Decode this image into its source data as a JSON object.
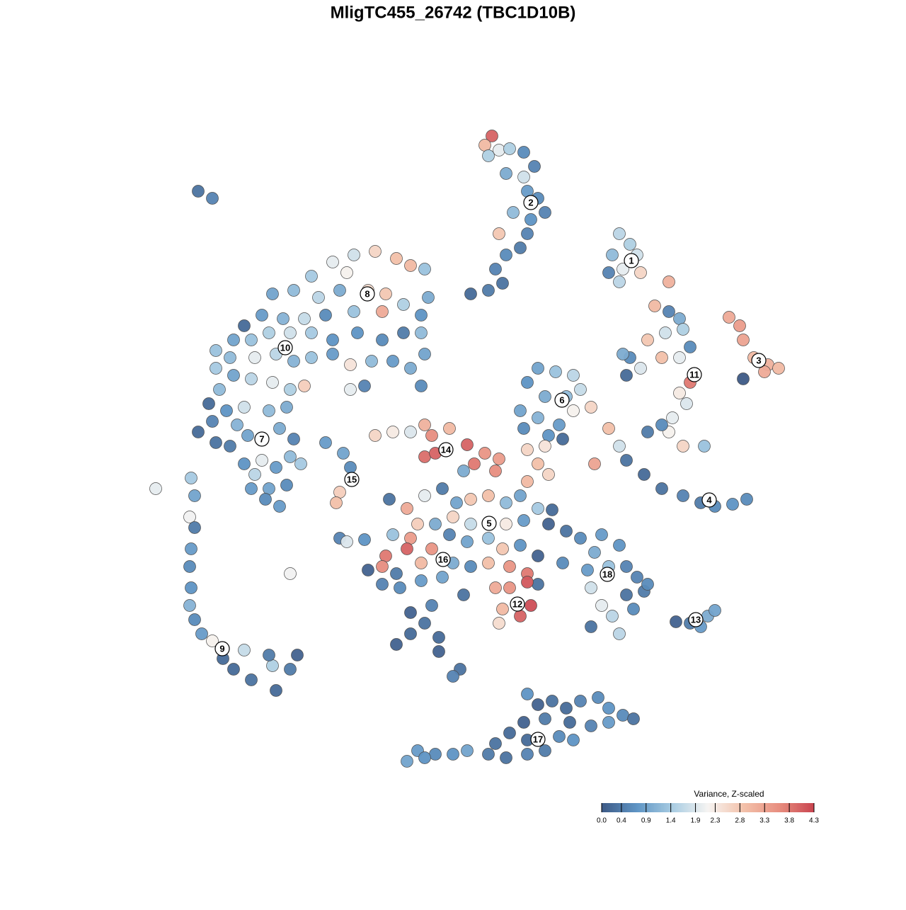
{
  "chart_data": {
    "type": "scatter",
    "title": "MligTC455_26742 (TBC1D10B)",
    "xlim": [
      0,
      128
    ],
    "ylim": [
      128,
      0
    ],
    "x": [
      69.5,
      68.5,
      70.5,
      72,
      74,
      75.5,
      74,
      74.5,
      76,
      77,
      75,
      72.5,
      74.5,
      73.5,
      71.5,
      70,
      71,
      69,
      66.5,
      70.5,
      71.5,
      69,
      87.5,
      89,
      86.5,
      88,
      90.5,
      87.5,
      86,
      94.5,
      90,
      92.5,
      94.5,
      96,
      94,
      96.5,
      91.5,
      97.5,
      93.5,
      96,
      89,
      88.5,
      90.5,
      97.5,
      96,
      97,
      95,
      94.5,
      91.5,
      93.5,
      96.5,
      99.5,
      88,
      103,
      104.5,
      105,
      106.5,
      108.5,
      110,
      108,
      105,
      76,
      78.5,
      81,
      74.5,
      77,
      80,
      82,
      73.5,
      76,
      79,
      74,
      81,
      83.5,
      77.5,
      79.5,
      86,
      87.5,
      88.5,
      91,
      93.5,
      96.5,
      99,
      101,
      103.5,
      105.5,
      84,
      47,
      50,
      53,
      56,
      58,
      60,
      49,
      44,
      41.5,
      38.5,
      45,
      48,
      52,
      54.5,
      57,
      60.5,
      59.5,
      54,
      50,
      46,
      43,
      40,
      37,
      34.5,
      33,
      35.5,
      38,
      41,
      44,
      47,
      50.5,
      54,
      57,
      59.5,
      60,
      58,
      55.5,
      52.5,
      49.5,
      47,
      44,
      41.5,
      39,
      36,
      32.5,
      30.5,
      30.5,
      33,
      35.5,
      38.5,
      41,
      43,
      31,
      29.5,
      32,
      34.5,
      38,
      40.5,
      30,
      33.5,
      28,
      30.5,
      32.5,
      35,
      39.5,
      59.5,
      51.5,
      49.5,
      34.5,
      37,
      36,
      39,
      41,
      42.5,
      38,
      40.5,
      39.5,
      37.5,
      41.5,
      35.5,
      28,
      30,
      27,
      27.5,
      26.8,
      27.5,
      27,
      26.8,
      27,
      26.8,
      27.5,
      28.5,
      30,
      31.5,
      34.5,
      33,
      35.5,
      38.5,
      39,
      41,
      42,
      38,
      22,
      41,
      46,
      48.5,
      49.5,
      48,
      47.5,
      48,
      49,
      51.5,
      53,
      55.5,
      58,
      60,
      61,
      63.5,
      60,
      61.5,
      66,
      68.5,
      70.5,
      67,
      70,
      65.5,
      74.5,
      77,
      76,
      77.5,
      74.5,
      55,
      57.5,
      60,
      62.5,
      64.5,
      66.5,
      69,
      71.5,
      73.5,
      76,
      78,
      59,
      61.5,
      64,
      66.5,
      71.5,
      74,
      77.5,
      55.5,
      58,
      61,
      63.5,
      66,
      69,
      71,
      73.5,
      57.5,
      54.5,
      54,
      52,
      56,
      59.5,
      64,
      66.5,
      69,
      72,
      74.5,
      76,
      54,
      56.5,
      59.5,
      62.5,
      65.5,
      70,
      72,
      74.5,
      75,
      73.5,
      71,
      70.5,
      58,
      61,
      60,
      58,
      56,
      62,
      62,
      65,
      64,
      80,
      82,
      79.5,
      76,
      85,
      87.5,
      84,
      86,
      83,
      88.5,
      90,
      91,
      89.5,
      83.5,
      85,
      86.5,
      83.5,
      87.5,
      88.5,
      91.5,
      95.5,
      97.5,
      99,
      100,
      101,
      74.5,
      76,
      78,
      80,
      82,
      84.5,
      86,
      88,
      89.5,
      74,
      77,
      80.5,
      83.5,
      86,
      72,
      79,
      81,
      74.5,
      70,
      69,
      71.5,
      74.5,
      77,
      66,
      64,
      61.5,
      59,
      57.5,
      60
    ],
    "y": [
      19.2,
      20.5,
      21.2,
      21,
      21.5,
      23.5,
      25,
      27,
      28,
      30,
      31,
      30,
      33,
      35,
      36,
      38,
      40,
      41,
      41.5,
      33,
      24.5,
      22,
      33,
      34.5,
      36,
      38,
      38.5,
      39.8,
      38.5,
      39.8,
      36,
      43.2,
      44,
      45,
      47,
      46.5,
      48,
      49,
      50.5,
      50.5,
      50.5,
      53,
      52,
      54,
      55.5,
      57,
      59,
      61,
      61,
      60,
      63,
      63,
      50,
      44.8,
      46,
      48,
      50.5,
      51.5,
      52,
      52.5,
      53.5,
      52,
      52.5,
      53,
      54,
      56,
      56,
      55,
      58,
      59,
      60,
      60.5,
      58,
      57.5,
      61.5,
      62,
      60.5,
      63,
      65,
      67,
      69,
      70,
      71,
      71.5,
      71.2,
      70.5,
      65.5,
      37,
      36,
      35.5,
      36.5,
      37.5,
      38,
      38.5,
      39,
      41,
      41.5,
      42,
      41,
      41,
      41.5,
      43,
      42,
      44.5,
      44,
      44,
      44.5,
      45,
      45,
      44.5,
      46,
      48,
      48,
      47,
      47,
      47,
      48,
      47,
      48,
      47,
      47,
      50,
      52,
      51,
      51,
      51.5,
      50,
      50.5,
      51,
      50,
      50.5,
      50.5,
      49.5,
      52,
      53,
      53.5,
      54,
      55,
      54.5,
      55,
      57,
      58,
      57.5,
      58,
      57.5,
      59.5,
      60,
      61,
      62.5,
      63,
      61.5,
      60.5,
      54.5,
      54.5,
      55,
      65.5,
      65,
      67,
      66,
      64.5,
      65.5,
      69,
      68.5,
      71.5,
      70.5,
      62,
      69,
      27,
      28,
      67.5,
      70,
      73,
      74.5,
      77.5,
      80,
      83,
      85.5,
      87.5,
      89.5,
      90.5,
      93,
      91.8,
      94.5,
      96,
      94,
      97.5,
      94.5,
      92.5,
      92.5,
      69,
      81,
      62.5,
      64,
      66,
      69.5,
      71,
      76,
      76.5,
      76.2,
      61.5,
      61,
      61,
      60,
      61.5,
      60.5,
      64.5,
      64,
      62.8,
      64,
      64.8,
      65.5,
      66.5,
      66.5,
      63.5,
      63,
      65.5,
      67,
      68,
      70.5,
      71.8,
      70,
      69,
      71,
      70.5,
      70,
      71,
      70,
      71.8,
      72,
      74,
      74,
      73,
      74,
      74,
      73.5,
      74,
      75.5,
      76,
      77.5,
      75.5,
      76.5,
      76,
      77.5,
      77,
      77.5,
      78.5,
      80,
      80.5,
      81,
      79.5,
      79.5,
      80,
      79.5,
      80,
      81,
      82.5,
      82.5,
      83,
      82,
      81.5,
      84,
      83,
      83,
      82.2,
      85.5,
      87,
      86,
      88,
      86.5,
      85.5,
      88,
      89.5,
      91,
      90,
      92,
      94.5,
      95.5,
      75,
      76,
      79.5,
      78.5,
      75.5,
      77,
      78,
      80,
      80.5,
      80,
      81.5,
      83.5,
      86,
      83,
      85.5,
      87,
      88.5,
      89.5,
      84,
      82.5,
      87.8,
      88,
      88.5,
      87,
      86.2,
      98,
      99.5,
      99,
      100,
      99,
      98.5,
      100,
      101,
      101.5,
      102,
      101.5,
      102,
      102.5,
      102,
      103.5,
      104,
      104.5,
      104.5,
      105,
      106.5,
      107,
      106.5,
      106,
      106,
      106.5,
      106.5,
      106,
      107.5,
      107
    ],
    "values": [
      4.0,
      3.0,
      2.0,
      1.5,
      0.6,
      0.5,
      1.8,
      0.8,
      0.6,
      0.5,
      0.7,
      1.2,
      0.5,
      0.4,
      0.6,
      0.5,
      0.3,
      0.4,
      0.2,
      2.8,
      1.0,
      1.5,
      1.6,
      1.5,
      1.2,
      2.0,
      2.6,
      1.6,
      0.5,
      3.1,
      1.8,
      3.0,
      0.5,
      1.0,
      1.8,
      1.5,
      2.8,
      0.6,
      2.9,
      2.0,
      0.6,
      0.2,
      1.9,
      3.8,
      2.3,
      1.9,
      2.0,
      2.2,
      0.4,
      0.6,
      2.6,
      1.3,
      1.0,
      3.2,
      3.4,
      3.3,
      3.0,
      3.1,
      3.0,
      3.2,
      0.0,
      0.9,
      1.3,
      1.6,
      0.7,
      1.0,
      1.2,
      1.7,
      0.9,
      1.1,
      0.8,
      0.6,
      2.2,
      2.6,
      0.7,
      0.2,
      2.9,
      1.8,
      0.3,
      0.2,
      0.3,
      0.5,
      0.4,
      0.6,
      0.7,
      0.6,
      3.3,
      2.0,
      1.8,
      2.6,
      2.9,
      3.0,
      1.3,
      2.2,
      1.4,
      1.2,
      0.9,
      1.6,
      1.0,
      2.5,
      2.8,
      1.5,
      1.0,
      0.7,
      3.2,
      1.3,
      0.6,
      1.7,
      1.1,
      0.8,
      0.2,
      0.9,
      1.3,
      1.5,
      1.8,
      1.4,
      0.7,
      0.7,
      0.6,
      0.4,
      1.2,
      0.9,
      1.0,
      0.8,
      1.2,
      2.4,
      0.8,
      1.3,
      1.1,
      1.6,
      2.0,
      1.2,
      1.3,
      1.4,
      0.9,
      1.6,
      2.0,
      1.5,
      2.7,
      1.2,
      0.2,
      0.7,
      1.8,
      1.2,
      1.0,
      0.5,
      1.1,
      0.2,
      0.3,
      0.4,
      0.9,
      1.0,
      0.6,
      0.5,
      2.0,
      0.7,
      2.0,
      1.6,
      0.8,
      1.2,
      1.4,
      0.9,
      0.6,
      0.8,
      0.6,
      0.5,
      0.8,
      0.3,
      0.5,
      1.4,
      0.9,
      2.1,
      0.4,
      0.8,
      0.6,
      0.7,
      1.1,
      0.6,
      0.8,
      2.2,
      0.2,
      1.7,
      0.2,
      0.3,
      1.5,
      0.2,
      0.4,
      0.1,
      0.4,
      2.0,
      2.1,
      0.8,
      0.9,
      0.6,
      2.7,
      2.9,
      0.5,
      1.9,
      0.7,
      2.6,
      2.3,
      1.9,
      3.1,
      3.6,
      3.0,
      3.9,
      4.0,
      4.0,
      3.5,
      3.4,
      3.8,
      3.6,
      1.0,
      2.6,
      2.4,
      2.9,
      2.6,
      3.0,
      0.3,
      3.2,
      2.0,
      0.4,
      0.9,
      2.8,
      2.9,
      1.2,
      0.9,
      1.4,
      0.2,
      2.7,
      1.0,
      2.6,
      1.7,
      2.3,
      0.8,
      0.1,
      1.3,
      3.4,
      3.5,
      0.5,
      0.9,
      1.3,
      2.8,
      0.7,
      4.0,
      3.8,
      3.6,
      0.1,
      0.4,
      3.0,
      1.0,
      0.6,
      2.9,
      3.5,
      3.8,
      0.3,
      0.5,
      0.6,
      0.8,
      0.9,
      0.3,
      3.2,
      3.5,
      4.1,
      4.2,
      4.0,
      3.0,
      2.5,
      0.1,
      0.5,
      0.3,
      0.2,
      0.1,
      0.2,
      0.1,
      0.3,
      0.5,
      0.3,
      0.6,
      0.6,
      0.1,
      0.8,
      0.7,
      1.0,
      1.3,
      0.8,
      0.5,
      0.5,
      0.4,
      0.6,
      1.8,
      2.0,
      1.6,
      0.3,
      1.6,
      0.3,
      0.6,
      0.1,
      0.4,
      0.8,
      1.0,
      0.9,
      0.7,
      0.1,
      0.3,
      0.2,
      0.5,
      0.6,
      0.7,
      0.6,
      0.3,
      0.1,
      0.4,
      0.2,
      0.5,
      0.8,
      0.2,
      0.6,
      0.7,
      0.2,
      0.3,
      0.4,
      0.3,
      0.5,
      0.4,
      0.9,
      0.7,
      0.6,
      0.8,
      0.9,
      0.7
    ],
    "cluster_labels": {
      "labels": [
        "1",
        "2",
        "3",
        "4",
        "5",
        "6",
        "7",
        "8",
        "9",
        "10",
        "11",
        "12",
        "13",
        "14",
        "15",
        "16",
        "17",
        "18"
      ],
      "x": [
        89.2,
        75,
        107.2,
        100.2,
        69.1,
        79.4,
        37,
        51.9,
        31.4,
        40.3,
        98.1,
        73.1,
        98.3,
        63,
        49.7,
        62.6,
        76,
        85.8
      ],
      "y": [
        36.8,
        28.6,
        50.9,
        70.6,
        73.9,
        56.5,
        62,
        41.5,
        91.6,
        49.1,
        52.9,
        85.3,
        87.5,
        63.5,
        67.7,
        79,
        104.4,
        81.1
      ]
    },
    "colorbar": {
      "title": "Variance, Z-scaled",
      "lim": [
        0,
        4.3
      ],
      "colors": [
        "#3d5a86",
        "#5f95c5",
        "#a8cce2",
        "#f6f4f2",
        "#f3c2ab",
        "#e88f80",
        "#c9444f"
      ],
      "ticks": [
        {
          "value": 0,
          "label": "0.0"
        },
        0.4,
        0.9,
        1.4,
        1.9,
        2.3,
        2.8,
        3.3,
        3.8,
        4.3
      ]
    }
  }
}
